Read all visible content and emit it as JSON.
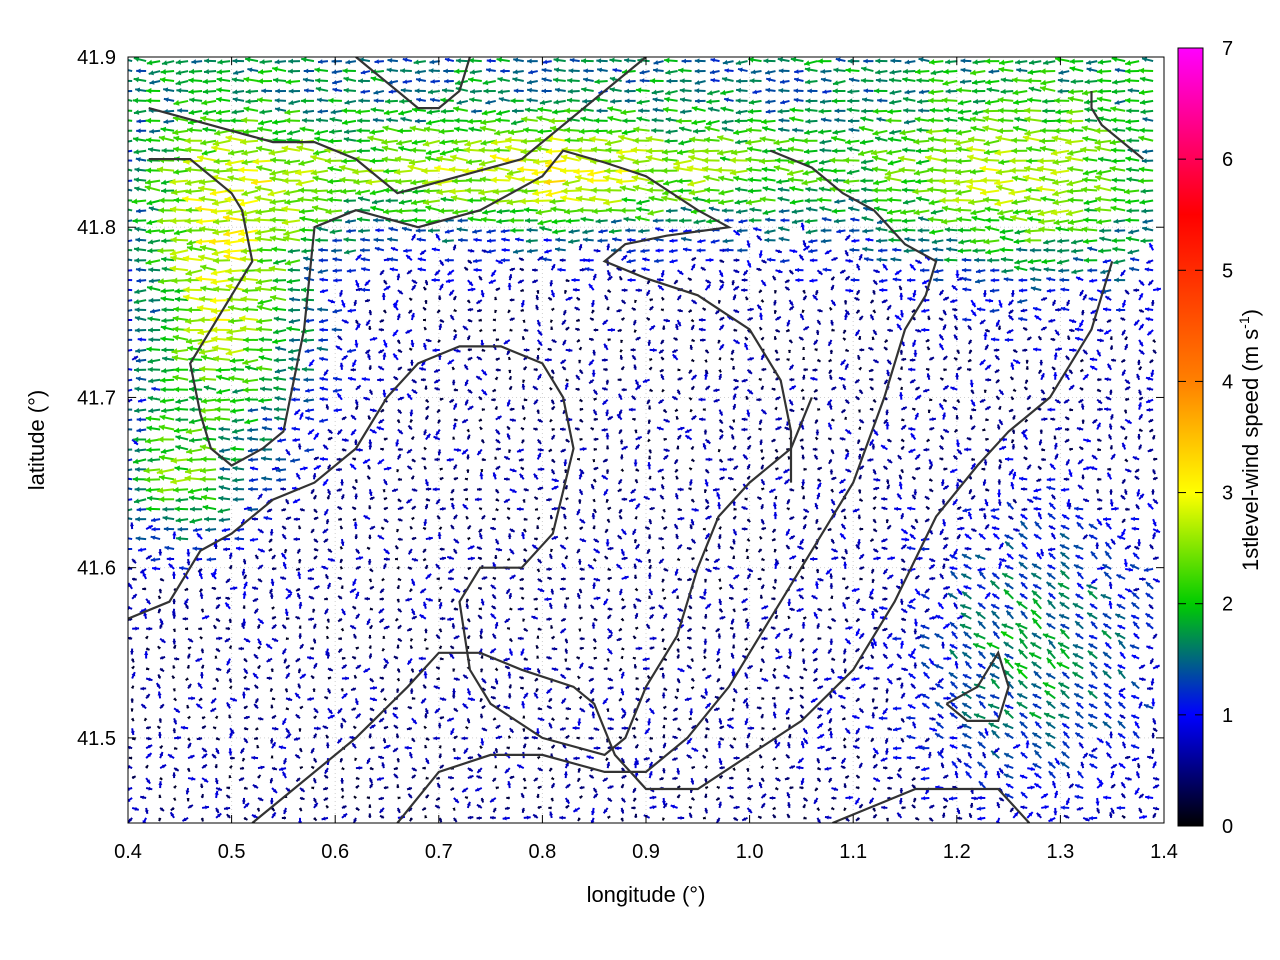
{
  "chart_data": {
    "type": "vector-field",
    "xlabel": "longitude (°)",
    "ylabel": "latitude (°)",
    "xlim": [
      0.4,
      1.4
    ],
    "ylim": [
      41.45,
      41.9
    ],
    "xticks": [
      "0.4",
      "0.5",
      "0.6",
      "0.7",
      "0.8",
      "0.9",
      "1.0",
      "1.1",
      "1.2",
      "1.3",
      "1.4"
    ],
    "yticks": [
      "41.5",
      "41.6",
      "41.7",
      "41.8",
      "41.9"
    ],
    "grid": true,
    "colorbar": {
      "label_main": "1stlevel-wind speed (m s",
      "label_sup": "-1",
      "label_end": ")",
      "range": [
        0,
        7
      ],
      "ticks": [
        "0",
        "1",
        "2",
        "3",
        "4",
        "5",
        "6",
        "7"
      ],
      "colors": [
        "#000000",
        "#0000ff",
        "#00cc00",
        "#ffff00",
        "#ff8000",
        "#ff0000",
        "#ff00ff"
      ],
      "stops": [
        0,
        1,
        2,
        3,
        4,
        5.5,
        7
      ]
    },
    "wind_regions": [
      {
        "area": "northwest (0.40–0.55, 41.65–41.85)",
        "direction": "westward",
        "speed_range": [
          2,
          3
        ]
      },
      {
        "area": "north band (0.60–1.15, 41.78–41.88)",
        "direction": "westward",
        "speed_range": [
          2,
          3
        ]
      },
      {
        "area": "northeast (1.15–1.40, 41.75–41.88)",
        "direction": "westward",
        "speed_range": [
          1.5,
          2.5
        ]
      },
      {
        "area": "central valley (0.70–1.00, 41.50–41.75)",
        "direction": "variable",
        "speed_range": [
          0,
          1
        ]
      },
      {
        "area": "southeast (1.05–1.40, 41.45–41.65)",
        "direction": "northwestward",
        "speed_range": [
          1,
          2
        ]
      }
    ],
    "contours": [
      [
        [
          0.42,
          41.87
        ],
        [
          0.48,
          41.86
        ],
        [
          0.54,
          41.85
        ],
        [
          0.58,
          41.85
        ],
        [
          0.62,
          41.84
        ],
        [
          0.66,
          41.82
        ],
        [
          0.72,
          41.83
        ],
        [
          0.78,
          41.84
        ],
        [
          0.82,
          41.86
        ],
        [
          0.86,
          41.88
        ],
        [
          0.9,
          41.9
        ]
      ],
      [
        [
          0.42,
          41.84
        ],
        [
          0.46,
          41.84
        ],
        [
          0.5,
          41.82
        ],
        [
          0.51,
          41.81
        ],
        [
          0.52,
          41.78
        ],
        [
          0.5,
          41.76
        ],
        [
          0.48,
          41.74
        ],
        [
          0.46,
          41.72
        ],
        [
          0.47,
          41.69
        ],
        [
          0.48,
          41.67
        ],
        [
          0.5,
          41.66
        ],
        [
          0.53,
          41.67
        ],
        [
          0.55,
          41.68
        ],
        [
          0.56,
          41.71
        ],
        [
          0.57,
          41.74
        ],
        [
          0.575,
          41.77
        ],
        [
          0.58,
          41.8
        ],
        [
          0.62,
          41.81
        ],
        [
          0.68,
          41.8
        ],
        [
          0.74,
          41.81
        ],
        [
          0.8,
          41.83
        ],
        [
          0.82,
          41.845
        ],
        [
          0.86,
          41.838
        ],
        [
          0.9,
          41.83
        ],
        [
          0.95,
          41.81
        ],
        [
          0.98,
          41.8
        ],
        [
          0.92,
          41.795
        ],
        [
          0.88,
          41.79
        ],
        [
          0.86,
          41.78
        ],
        [
          0.9,
          41.77
        ],
        [
          0.95,
          41.76
        ],
        [
          1.0,
          41.74
        ],
        [
          1.03,
          41.71
        ],
        [
          1.04,
          41.68
        ],
        [
          1.04,
          41.65
        ]
      ],
      [
        [
          0.4,
          41.57
        ],
        [
          0.44,
          41.58
        ],
        [
          0.47,
          41.61
        ],
        [
          0.5,
          41.62
        ],
        [
          0.54,
          41.64
        ],
        [
          0.58,
          41.65
        ],
        [
          0.62,
          41.67
        ],
        [
          0.65,
          41.7
        ],
        [
          0.68,
          41.72
        ],
        [
          0.72,
          41.73
        ],
        [
          0.76,
          41.73
        ],
        [
          0.8,
          41.72
        ],
        [
          0.82,
          41.7
        ],
        [
          0.83,
          41.67
        ],
        [
          0.81,
          41.62
        ],
        [
          0.78,
          41.6
        ],
        [
          0.74,
          41.6
        ],
        [
          0.72,
          41.58
        ],
        [
          0.73,
          41.54
        ],
        [
          0.75,
          41.52
        ],
        [
          0.8,
          41.5
        ],
        [
          0.86,
          41.49
        ],
        [
          0.88,
          41.5
        ],
        [
          0.9,
          41.53
        ],
        [
          0.93,
          41.56
        ],
        [
          0.95,
          41.6
        ],
        [
          0.97,
          41.63
        ],
        [
          1.0,
          41.65
        ],
        [
          1.04,
          41.67
        ],
        [
          1.06,
          41.7
        ]
      ],
      [
        [
          0.52,
          41.45
        ],
        [
          0.56,
          41.47
        ],
        [
          0.62,
          41.5
        ],
        [
          0.67,
          41.53
        ],
        [
          0.7,
          41.55
        ],
        [
          0.74,
          41.55
        ],
        [
          0.78,
          41.54
        ],
        [
          0.83,
          41.53
        ],
        [
          0.85,
          41.52
        ],
        [
          0.87,
          41.49
        ],
        [
          0.9,
          41.47
        ],
        [
          0.95,
          41.47
        ],
        [
          1.0,
          41.49
        ],
        [
          1.05,
          41.51
        ],
        [
          1.1,
          41.54
        ],
        [
          1.14,
          41.58
        ],
        [
          1.18,
          41.63
        ],
        [
          1.22,
          41.66
        ],
        [
          1.25,
          41.68
        ],
        [
          1.27,
          41.69
        ],
        [
          1.29,
          41.7
        ],
        [
          1.31,
          41.72
        ],
        [
          1.33,
          41.74
        ],
        [
          1.34,
          41.76
        ],
        [
          1.35,
          41.78
        ]
      ],
      [
        [
          0.66,
          41.45
        ],
        [
          0.7,
          41.48
        ],
        [
          0.75,
          41.49
        ],
        [
          0.8,
          41.49
        ],
        [
          0.86,
          41.48
        ],
        [
          0.9,
          41.48
        ],
        [
          0.94,
          41.5
        ],
        [
          0.98,
          41.53
        ],
        [
          1.02,
          41.57
        ],
        [
          1.06,
          41.61
        ],
        [
          1.1,
          41.65
        ],
        [
          1.13,
          41.7
        ],
        [
          1.15,
          41.74
        ],
        [
          1.17,
          41.76
        ],
        [
          1.18,
          41.78
        ],
        [
          1.15,
          41.79
        ],
        [
          1.12,
          41.81
        ],
        [
          1.09,
          41.82
        ],
        [
          1.06,
          41.835
        ],
        [
          1.02,
          41.845
        ]
      ],
      [
        [
          1.08,
          41.45
        ],
        [
          1.12,
          41.46
        ],
        [
          1.16,
          41.47
        ],
        [
          1.2,
          41.47
        ],
        [
          1.24,
          41.47
        ],
        [
          1.27,
          41.45
        ]
      ],
      [
        [
          1.19,
          41.52
        ],
        [
          1.22,
          41.53
        ],
        [
          1.24,
          41.55
        ],
        [
          1.25,
          41.53
        ],
        [
          1.24,
          41.51
        ],
        [
          1.21,
          41.51
        ],
        [
          1.19,
          41.52
        ]
      ],
      [
        [
          1.33,
          41.88
        ],
        [
          1.33,
          41.87
        ],
        [
          1.34,
          41.86
        ],
        [
          1.36,
          41.85
        ],
        [
          1.38,
          41.84
        ]
      ],
      [
        [
          0.62,
          41.9
        ],
        [
          0.64,
          41.89
        ],
        [
          0.66,
          41.88
        ],
        [
          0.68,
          41.87
        ],
        [
          0.7,
          41.87
        ],
        [
          0.72,
          41.88
        ],
        [
          0.73,
          41.9
        ]
      ]
    ]
  }
}
